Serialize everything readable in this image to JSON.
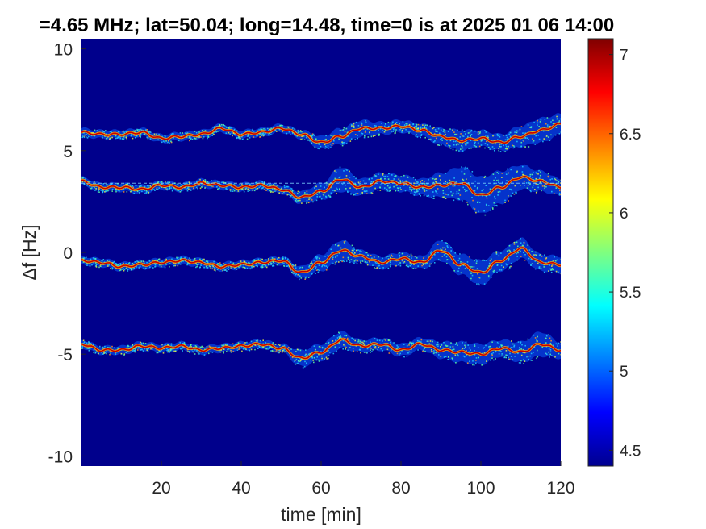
{
  "chart_data": {
    "type": "heatmap",
    "title": "=4.65 MHz;  lat=50.04; long=14.48, time=0 is at 2025 01 06 14:00",
    "xlabel": "time [min]",
    "ylabel": "Δf [Hz]",
    "xlim": [
      0,
      120
    ],
    "ylim": [
      -10.5,
      10.5
    ],
    "x_ticks": [
      "20",
      "40",
      "60",
      "80",
      "100",
      "120"
    ],
    "y_ticks": [
      "-10",
      "-5",
      "0",
      "5",
      "10"
    ],
    "x_tick_values": [
      20,
      40,
      60,
      80,
      100,
      120
    ],
    "y_tick_values": [
      -10,
      -5,
      0,
      5,
      10
    ],
    "colorbar": {
      "range": [
        4.4,
        7.1
      ],
      "ticks": [
        "4.5",
        "5",
        "5.5",
        "6",
        "6.5",
        "7"
      ],
      "tick_values": [
        4.5,
        5,
        5.5,
        6,
        6.5,
        7
      ],
      "colormap": "jet"
    },
    "background_color": "#00008c",
    "reference_line": {
      "y": 3.4,
      "color": "#7fd8ff"
    },
    "series": [
      {
        "x": [
          0,
          5,
          10,
          15,
          20,
          25,
          30,
          35,
          40,
          45,
          50,
          55,
          60,
          65,
          70,
          75,
          80,
          85,
          90,
          95,
          100,
          105,
          110,
          115,
          120
        ],
        "y": [
          5.9,
          5.8,
          5.8,
          5.9,
          5.6,
          5.7,
          5.8,
          6.1,
          5.8,
          5.9,
          6.1,
          5.8,
          5.4,
          5.7,
          6.1,
          6.1,
          6.2,
          6.0,
          5.7,
          5.5,
          5.6,
          5.4,
          5.7,
          6.0,
          6.3
        ],
        "spread": [
          0.2,
          0.2,
          0.2,
          0.2,
          0.2,
          0.2,
          0.2,
          0.2,
          0.2,
          0.2,
          0.2,
          0.2,
          0.3,
          0.4,
          0.4,
          0.3,
          0.3,
          0.3,
          0.4,
          0.5,
          0.4,
          0.4,
          0.5,
          0.6,
          0.5
        ]
      },
      {
        "x": [
          0,
          5,
          10,
          15,
          20,
          25,
          30,
          35,
          40,
          45,
          50,
          55,
          60,
          65,
          70,
          75,
          80,
          85,
          90,
          95,
          100,
          105,
          110,
          115,
          120
        ],
        "y": [
          3.5,
          3.2,
          3.2,
          3.1,
          3.3,
          3.2,
          3.4,
          3.3,
          3.2,
          3.3,
          3.1,
          2.7,
          3.0,
          3.6,
          3.2,
          3.5,
          3.4,
          3.2,
          3.3,
          3.4,
          2.8,
          3.2,
          3.7,
          3.5,
          3.2
        ],
        "spread": [
          0.2,
          0.2,
          0.2,
          0.2,
          0.2,
          0.2,
          0.2,
          0.2,
          0.2,
          0.2,
          0.2,
          0.3,
          0.4,
          0.6,
          0.4,
          0.4,
          0.4,
          0.4,
          0.6,
          0.8,
          0.9,
          0.8,
          0.6,
          0.5,
          0.4
        ]
      },
      {
        "x": [
          0,
          5,
          10,
          15,
          20,
          25,
          30,
          35,
          40,
          45,
          50,
          55,
          60,
          65,
          70,
          75,
          80,
          85,
          90,
          95,
          100,
          105,
          110,
          115,
          120
        ],
        "y": [
          -0.4,
          -0.5,
          -0.7,
          -0.6,
          -0.5,
          -0.4,
          -0.5,
          -0.7,
          -0.6,
          -0.5,
          -0.4,
          -1.0,
          -0.5,
          0.1,
          -0.2,
          -0.5,
          -0.3,
          -0.5,
          0.1,
          -0.6,
          -1.0,
          -0.4,
          0.2,
          -0.5,
          -0.6
        ],
        "spread": [
          0.2,
          0.2,
          0.2,
          0.2,
          0.2,
          0.2,
          0.2,
          0.2,
          0.2,
          0.2,
          0.2,
          0.3,
          0.4,
          0.5,
          0.3,
          0.3,
          0.3,
          0.3,
          0.5,
          0.5,
          0.6,
          0.5,
          0.5,
          0.4,
          0.4
        ]
      },
      {
        "x": [
          0,
          5,
          10,
          15,
          20,
          25,
          30,
          35,
          40,
          45,
          50,
          55,
          60,
          65,
          70,
          75,
          80,
          85,
          90,
          95,
          100,
          105,
          110,
          115,
          120
        ],
        "y": [
          -4.5,
          -4.8,
          -4.8,
          -4.6,
          -4.7,
          -4.6,
          -4.8,
          -4.7,
          -4.6,
          -4.5,
          -4.7,
          -5.2,
          -4.9,
          -4.3,
          -4.6,
          -4.5,
          -4.8,
          -4.5,
          -4.8,
          -4.9,
          -5.0,
          -4.7,
          -4.9,
          -4.5,
          -4.8
        ],
        "spread": [
          0.2,
          0.2,
          0.2,
          0.2,
          0.2,
          0.2,
          0.2,
          0.2,
          0.2,
          0.2,
          0.2,
          0.4,
          0.4,
          0.4,
          0.3,
          0.3,
          0.3,
          0.3,
          0.4,
          0.5,
          0.5,
          0.4,
          0.5,
          0.6,
          0.4
        ]
      }
    ]
  }
}
